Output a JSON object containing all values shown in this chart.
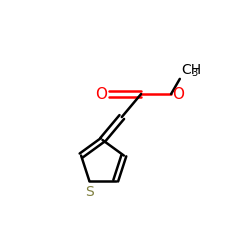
{
  "background_color": "#ffffff",
  "bond_color": "#000000",
  "oxygen_color": "#ff0000",
  "sulfur_color": "#808040",
  "text_color": "#000000",
  "line_width": 1.8,
  "font_size": 10,
  "fig_size": [
    2.5,
    2.5
  ],
  "dpi": 100,
  "xlim": [
    0,
    10
  ],
  "ylim": [
    0,
    10
  ]
}
